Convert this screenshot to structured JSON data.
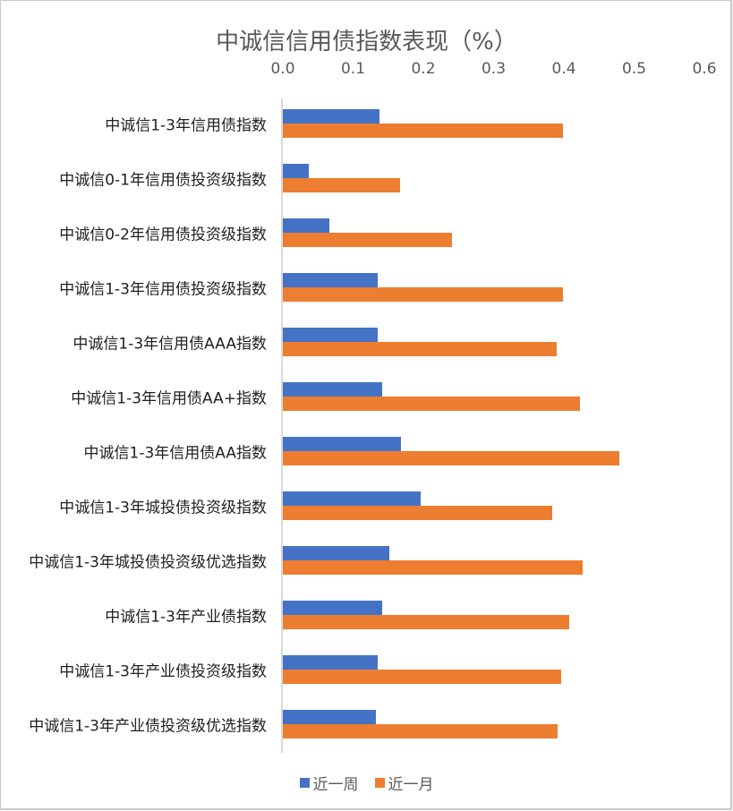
{
  "chart_data": {
    "type": "bar",
    "orientation": "horizontal",
    "title": "中诚信信用债指数表现（%）",
    "xlabel": "",
    "ylabel": "",
    "xlim": [
      0,
      0.6
    ],
    "x_ticks": [
      "0.0",
      "0.1",
      "0.2",
      "0.3",
      "0.4",
      "0.5",
      "0.6"
    ],
    "x_axis_position": "top",
    "grid": false,
    "legend_position": "bottom",
    "categories": [
      "中诚信1-3年信用债指数",
      "中诚信0-1年信用债投资级指数",
      "中诚信0-2年信用债投资级指数",
      "中诚信1-3年信用债投资级指数",
      "中诚信1-3年信用债AAA指数",
      "中诚信1-3年信用债AA+指数",
      "中诚信1-3年信用债AA指数",
      "中诚信1-3年城投债投资级指数",
      "中诚信1-3年城投债投资级优选指数",
      "中诚信1-3年产业债指数",
      "中诚信1-3年产业债投资级指数",
      "中诚信1-3年产业债投资级优选指数"
    ],
    "series": [
      {
        "name": "近一周",
        "color": "#4472c4",
        "values": [
          0.138,
          0.037,
          0.066,
          0.135,
          0.135,
          0.141,
          0.168,
          0.196,
          0.152,
          0.141,
          0.135,
          0.132
        ]
      },
      {
        "name": "近一月",
        "color": "#ed7d31",
        "values": [
          0.399,
          0.167,
          0.241,
          0.399,
          0.39,
          0.423,
          0.479,
          0.383,
          0.427,
          0.408,
          0.396,
          0.391
        ]
      }
    ]
  },
  "legend": {
    "week": "近一周",
    "month": "近一月"
  }
}
